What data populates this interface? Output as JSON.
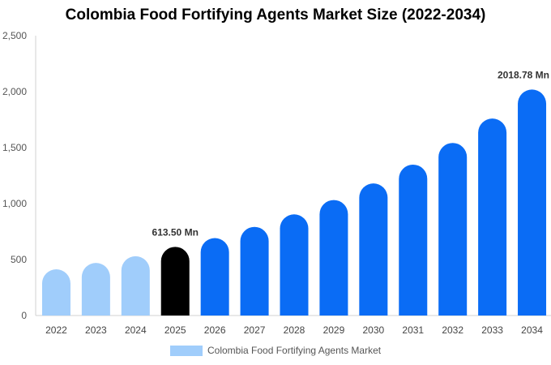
{
  "chart_data": {
    "type": "bar",
    "title": "Colombia Food Fortifying Agents Market Size (2022-2034)",
    "xlabel": "",
    "ylabel": "",
    "ylim": [
      0,
      2500
    ],
    "yticks": [
      0,
      500,
      1000,
      1500,
      2000,
      2500
    ],
    "ytick_labels": [
      "0",
      "500",
      "1,000",
      "1,500",
      "2,000",
      "2,500"
    ],
    "categories": [
      "2022",
      "2023",
      "2024",
      "2025",
      "2026",
      "2027",
      "2028",
      "2029",
      "2030",
      "2031",
      "2032",
      "2033",
      "2034"
    ],
    "series": [
      {
        "name": "Colombia Food Fortifying Agents Market",
        "values": [
          413,
          470,
          530,
          613.5,
          692,
          792,
          904,
          1032,
          1180,
          1348,
          1542,
          1760,
          2018.78
        ]
      }
    ],
    "data_labels": [
      {
        "index": 3,
        "text": "613.50 Mn"
      },
      {
        "index": 12,
        "text": "2018.78 Mn"
      }
    ],
    "colors": {
      "historical": "#a0cdfb",
      "current": "#000000",
      "forecast": "#0a6cf5"
    },
    "grid": false,
    "legend_position": "bottom"
  }
}
